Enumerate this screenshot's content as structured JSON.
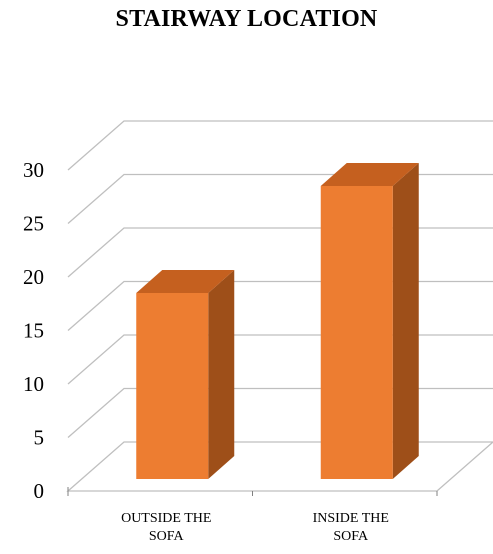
{
  "chart_data": {
    "type": "bar",
    "title": "STAIRWAY LOCATION",
    "categories": [
      "OUTSIDE THE SOFA",
      "INSIDE THE SOFA"
    ],
    "category_lines": [
      [
        "OUTSIDE THE",
        "SOFA"
      ],
      [
        "INSIDE THE",
        "SOFA"
      ]
    ],
    "values": [
      20,
      30
    ],
    "ylim": [
      0,
      30
    ],
    "yticks": [
      0,
      5,
      10,
      15,
      20,
      25,
      30
    ],
    "xlabel": "",
    "ylabel": "",
    "grid": true,
    "legend": "none",
    "style": "3d-column",
    "colors": {
      "front": "#ED7D31",
      "side": "#9E4F19",
      "top": "#C5601F",
      "grid": "#BFBFBF"
    }
  }
}
